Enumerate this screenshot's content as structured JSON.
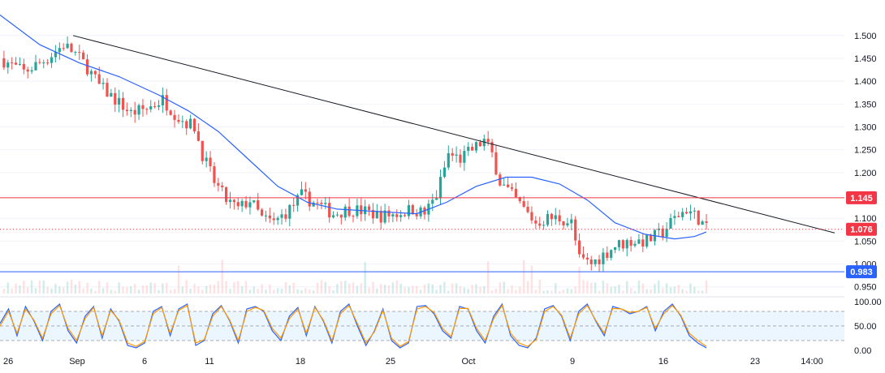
{
  "colors": {
    "up": "#26a69a",
    "down": "#ef5350",
    "ma": "#2962ff",
    "trendline": "#131722",
    "resistance": "#f23645",
    "support": "#2962ff",
    "stoch_k": "#2962ff",
    "stoch_d": "#ff9800",
    "stoch_band": "#e3f2fd",
    "grid": "#f0f3fa",
    "axis_text": "#131722"
  },
  "chart_data": [
    {
      "type": "candlestick",
      "title": "",
      "price_axis": {
        "ticks": [
          "1.500",
          "1.450",
          "1.400",
          "1.350",
          "1.300",
          "1.250",
          "1.200",
          "1.150",
          "1.100",
          "1.050",
          "1.000",
          "0.950"
        ],
        "range": [
          0.93,
          1.56
        ]
      },
      "time_axis": {
        "ticks": [
          "26",
          "Sep",
          "6",
          "11",
          "18",
          "25",
          "Oct",
          "9",
          "16",
          "23",
          "14:00"
        ]
      },
      "price_tags": [
        {
          "label": "1.145",
          "value": 1.145,
          "color": "#f23645",
          "kind": "resistance"
        },
        {
          "label": "1.076",
          "value": 1.076,
          "color": "#f23645",
          "kind": "last-price"
        },
        {
          "label": "0.983",
          "value": 0.983,
          "color": "#2962ff",
          "kind": "support"
        }
      ],
      "trendline": {
        "from": {
          "t": 38,
          "price": 1.5
        },
        "to": {
          "t": 412,
          "price": 1.068
        }
      },
      "anchors": [
        {
          "t": 0,
          "price": 1.45
        },
        {
          "t": 12,
          "price": 1.42
        },
        {
          "t": 24,
          "price": 1.45
        },
        {
          "t": 32,
          "price": 1.48
        },
        {
          "t": 38,
          "price": 1.46
        },
        {
          "t": 44,
          "price": 1.43
        },
        {
          "t": 50,
          "price": 1.39
        },
        {
          "t": 58,
          "price": 1.36
        },
        {
          "t": 66,
          "price": 1.33
        },
        {
          "t": 74,
          "price": 1.34
        },
        {
          "t": 82,
          "price": 1.36
        },
        {
          "t": 90,
          "price": 1.32
        },
        {
          "t": 98,
          "price": 1.3
        },
        {
          "t": 102,
          "price": 1.24
        },
        {
          "t": 108,
          "price": 1.18
        },
        {
          "t": 114,
          "price": 1.14
        },
        {
          "t": 120,
          "price": 1.12
        },
        {
          "t": 126,
          "price": 1.14
        },
        {
          "t": 132,
          "price": 1.1
        },
        {
          "t": 138,
          "price": 1.09
        },
        {
          "t": 146,
          "price": 1.12
        },
        {
          "t": 152,
          "price": 1.15
        },
        {
          "t": 160,
          "price": 1.13
        },
        {
          "t": 168,
          "price": 1.11
        },
        {
          "t": 176,
          "price": 1.12
        },
        {
          "t": 184,
          "price": 1.115
        },
        {
          "t": 192,
          "price": 1.105
        },
        {
          "t": 200,
          "price": 1.11
        },
        {
          "t": 208,
          "price": 1.12
        },
        {
          "t": 214,
          "price": 1.11
        },
        {
          "t": 220,
          "price": 1.15
        },
        {
          "t": 226,
          "price": 1.24
        },
        {
          "t": 232,
          "price": 1.23
        },
        {
          "t": 238,
          "price": 1.25
        },
        {
          "t": 244,
          "price": 1.27
        },
        {
          "t": 248,
          "price": 1.24
        },
        {
          "t": 252,
          "price": 1.18
        },
        {
          "t": 258,
          "price": 1.15
        },
        {
          "t": 264,
          "price": 1.12
        },
        {
          "t": 270,
          "price": 1.09
        },
        {
          "t": 276,
          "price": 1.1
        },
        {
          "t": 282,
          "price": 1.1
        },
        {
          "t": 288,
          "price": 1.09
        },
        {
          "t": 292,
          "price": 1.01
        },
        {
          "t": 298,
          "price": 1.0
        },
        {
          "t": 304,
          "price": 1.02
        },
        {
          "t": 310,
          "price": 1.04
        },
        {
          "t": 318,
          "price": 1.05
        },
        {
          "t": 326,
          "price": 1.05
        },
        {
          "t": 334,
          "price": 1.07
        },
        {
          "t": 340,
          "price": 1.1
        },
        {
          "t": 346,
          "price": 1.12
        },
        {
          "t": 352,
          "price": 1.1
        },
        {
          "t": 356,
          "price": 1.076
        }
      ],
      "moving_average": [
        {
          "t": 0,
          "price": 1.545
        },
        {
          "t": 20,
          "price": 1.48
        },
        {
          "t": 40,
          "price": 1.44
        },
        {
          "t": 60,
          "price": 1.41
        },
        {
          "t": 80,
          "price": 1.37
        },
        {
          "t": 95,
          "price": 1.335
        },
        {
          "t": 110,
          "price": 1.29
        },
        {
          "t": 125,
          "price": 1.23
        },
        {
          "t": 140,
          "price": 1.17
        },
        {
          "t": 155,
          "price": 1.135
        },
        {
          "t": 170,
          "price": 1.12
        },
        {
          "t": 190,
          "price": 1.115
        },
        {
          "t": 210,
          "price": 1.11
        },
        {
          "t": 225,
          "price": 1.135
        },
        {
          "t": 240,
          "price": 1.17
        },
        {
          "t": 255,
          "price": 1.19
        },
        {
          "t": 268,
          "price": 1.19
        },
        {
          "t": 282,
          "price": 1.175
        },
        {
          "t": 296,
          "price": 1.14
        },
        {
          "t": 310,
          "price": 1.09
        },
        {
          "t": 325,
          "price": 1.065
        },
        {
          "t": 340,
          "price": 1.055
        },
        {
          "t": 350,
          "price": 1.06
        },
        {
          "t": 356,
          "price": 1.07
        }
      ]
    },
    {
      "type": "line",
      "title": "",
      "y_axis": {
        "ticks": [
          "100.00",
          "50.00",
          "0.00"
        ],
        "range": [
          0,
          100
        ]
      },
      "band": [
        20,
        80
      ],
      "series": [
        {
          "key": "k",
          "values": [
            55,
            85,
            30,
            90,
            60,
            20,
            80,
            95,
            40,
            15,
            70,
            90,
            25,
            85,
            60,
            10,
            5,
            15,
            80,
            90,
            30,
            85,
            95,
            10,
            20,
            75,
            92,
            60,
            15,
            85,
            90,
            80,
            40,
            20,
            70,
            88,
            30,
            90,
            60,
            15,
            80,
            95,
            50,
            10,
            40,
            85,
            20,
            5,
            15,
            90,
            92,
            75,
            40,
            25,
            90,
            85,
            40,
            15,
            70,
            95,
            30,
            10,
            5,
            25,
            85,
            92,
            70,
            20,
            80,
            95,
            60,
            30,
            90,
            85,
            75,
            80,
            90,
            40,
            80,
            95,
            70,
            30,
            15,
            5
          ]
        },
        {
          "key": "d",
          "values": [
            50,
            80,
            35,
            85,
            62,
            25,
            75,
            92,
            45,
            20,
            65,
            88,
            30,
            82,
            62,
            15,
            8,
            18,
            75,
            88,
            35,
            82,
            92,
            15,
            22,
            70,
            90,
            62,
            20,
            80,
            88,
            82,
            45,
            25,
            65,
            85,
            35,
            88,
            62,
            20,
            75,
            92,
            55,
            15,
            38,
            82,
            25,
            8,
            18,
            85,
            90,
            78,
            45,
            28,
            86,
            86,
            45,
            20,
            65,
            92,
            35,
            15,
            8,
            22,
            80,
            90,
            72,
            25,
            75,
            92,
            62,
            35,
            86,
            85,
            78,
            80,
            88,
            45,
            75,
            92,
            72,
            35,
            20,
            8
          ]
        }
      ]
    }
  ]
}
